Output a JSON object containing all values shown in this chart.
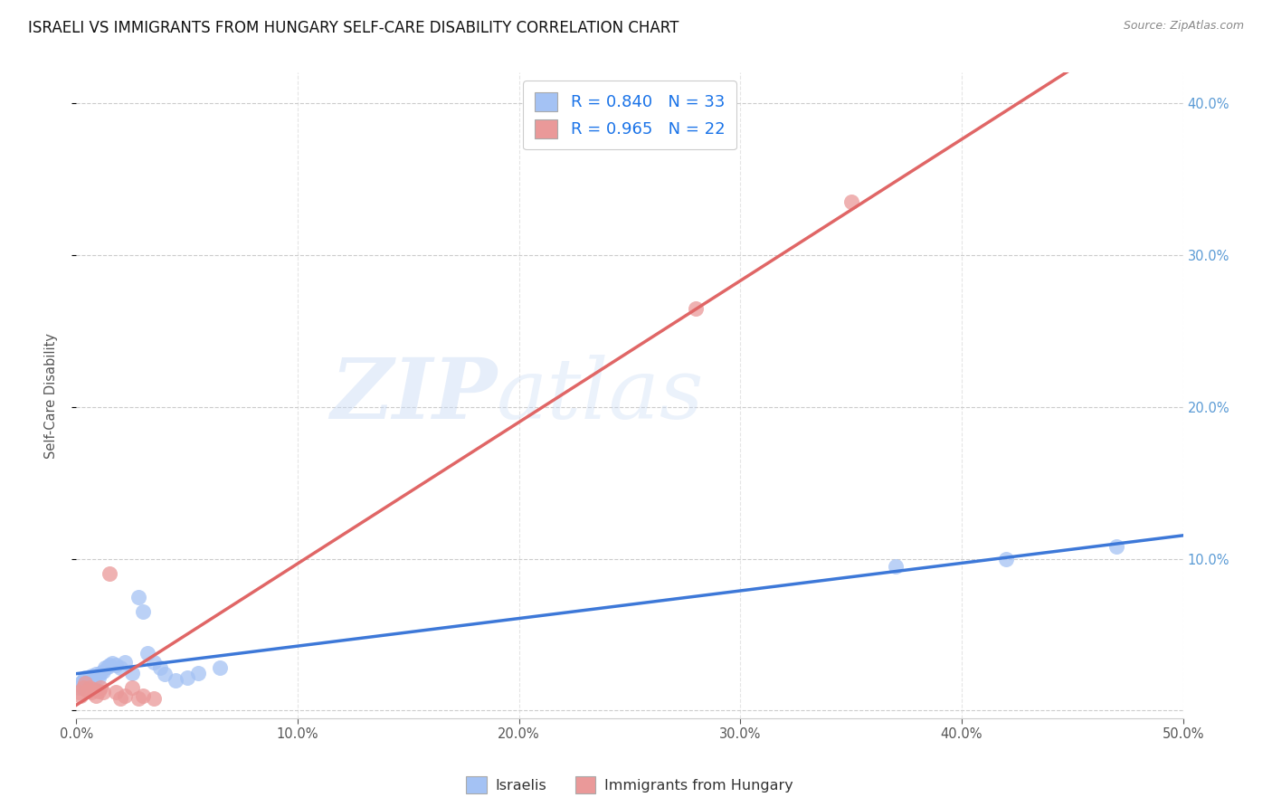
{
  "title": "ISRAELI VS IMMIGRANTS FROM HUNGARY SELF-CARE DISABILITY CORRELATION CHART",
  "source": "Source: ZipAtlas.com",
  "ylabel": "Self-Care Disability",
  "watermark_zip": "ZIP",
  "watermark_atlas": "atlas",
  "xmin": 0.0,
  "xmax": 50.0,
  "ymin": -0.5,
  "ymax": 42.0,
  "legend1_label": "R = 0.840   N = 33",
  "legend2_label": "R = 0.965   N = 22",
  "israeli_color": "#a4c2f4",
  "hungary_color": "#ea9999",
  "israeli_line_color": "#3d78d8",
  "hungary_line_color": "#e06666",
  "israeli_scatter_x": [
    0.1,
    0.2,
    0.3,
    0.4,
    0.5,
    0.6,
    0.7,
    0.8,
    0.9,
    1.0,
    1.1,
    1.2,
    1.3,
    1.4,
    1.5,
    1.6,
    1.8,
    2.0,
    2.2,
    2.5,
    2.8,
    3.0,
    3.2,
    3.5,
    3.8,
    4.0,
    4.5,
    5.0,
    5.5,
    6.5,
    37.0,
    42.0,
    47.0
  ],
  "israeli_scatter_y": [
    1.5,
    1.8,
    2.0,
    2.2,
    1.9,
    2.1,
    2.3,
    2.0,
    2.4,
    2.2,
    2.5,
    2.6,
    2.8,
    2.9,
    3.0,
    3.1,
    3.0,
    2.8,
    3.2,
    2.5,
    7.5,
    6.5,
    3.8,
    3.2,
    2.8,
    2.4,
    2.0,
    2.2,
    2.5,
    2.8,
    9.5,
    10.0,
    10.8
  ],
  "hungary_scatter_x": [
    0.1,
    0.2,
    0.3,
    0.4,
    0.5,
    0.6,
    0.7,
    0.8,
    0.9,
    1.0,
    1.1,
    1.2,
    1.5,
    1.8,
    2.0,
    2.2,
    2.5,
    2.8,
    3.0,
    3.5,
    28.0,
    35.0
  ],
  "hungary_scatter_y": [
    1.2,
    1.0,
    1.5,
    1.8,
    1.3,
    1.5,
    1.2,
    1.4,
    1.0,
    1.3,
    1.5,
    1.2,
    9.0,
    1.2,
    0.8,
    1.0,
    1.5,
    0.8,
    1.0,
    0.8,
    26.5,
    33.5
  ],
  "bottom_legend_israelis": "Israelis",
  "bottom_legend_hungary": "Immigrants from Hungary"
}
